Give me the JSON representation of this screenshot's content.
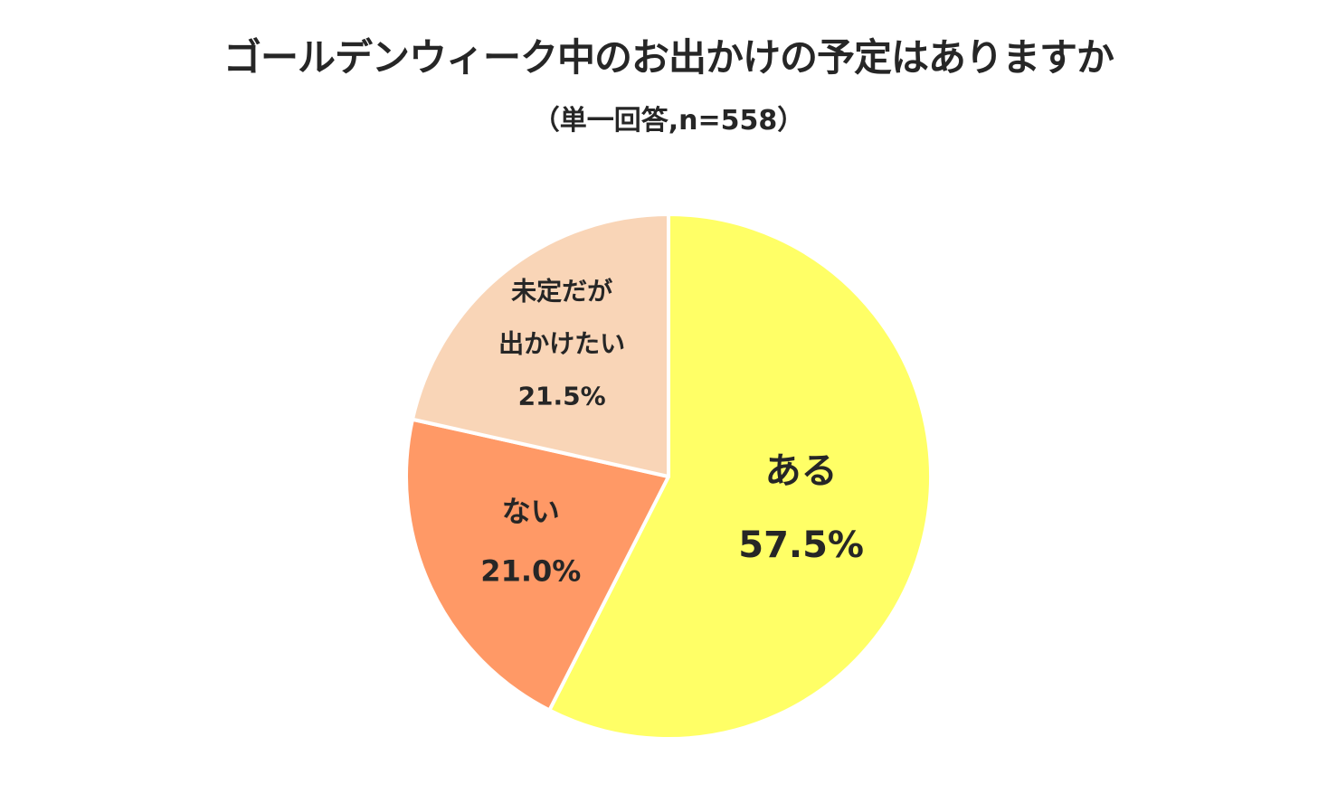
{
  "chart_data": {
    "type": "pie",
    "title": "ゴールデンウィーク中のお出かけの予定はありますか",
    "subtitle": "（単一回答,n=558）",
    "slices": [
      {
        "label_lines": [
          "ある"
        ],
        "value": 57.5,
        "value_label": "57.5%",
        "color": "#FFFF66"
      },
      {
        "label_lines": [
          "ない"
        ],
        "value": 21.0,
        "value_label": "21.0%",
        "color": "#FF9966"
      },
      {
        "label_lines": [
          "未定だが",
          "出かけたい"
        ],
        "value": 21.5,
        "value_label": "21.5%",
        "color": "#F9D5B7"
      }
    ]
  }
}
